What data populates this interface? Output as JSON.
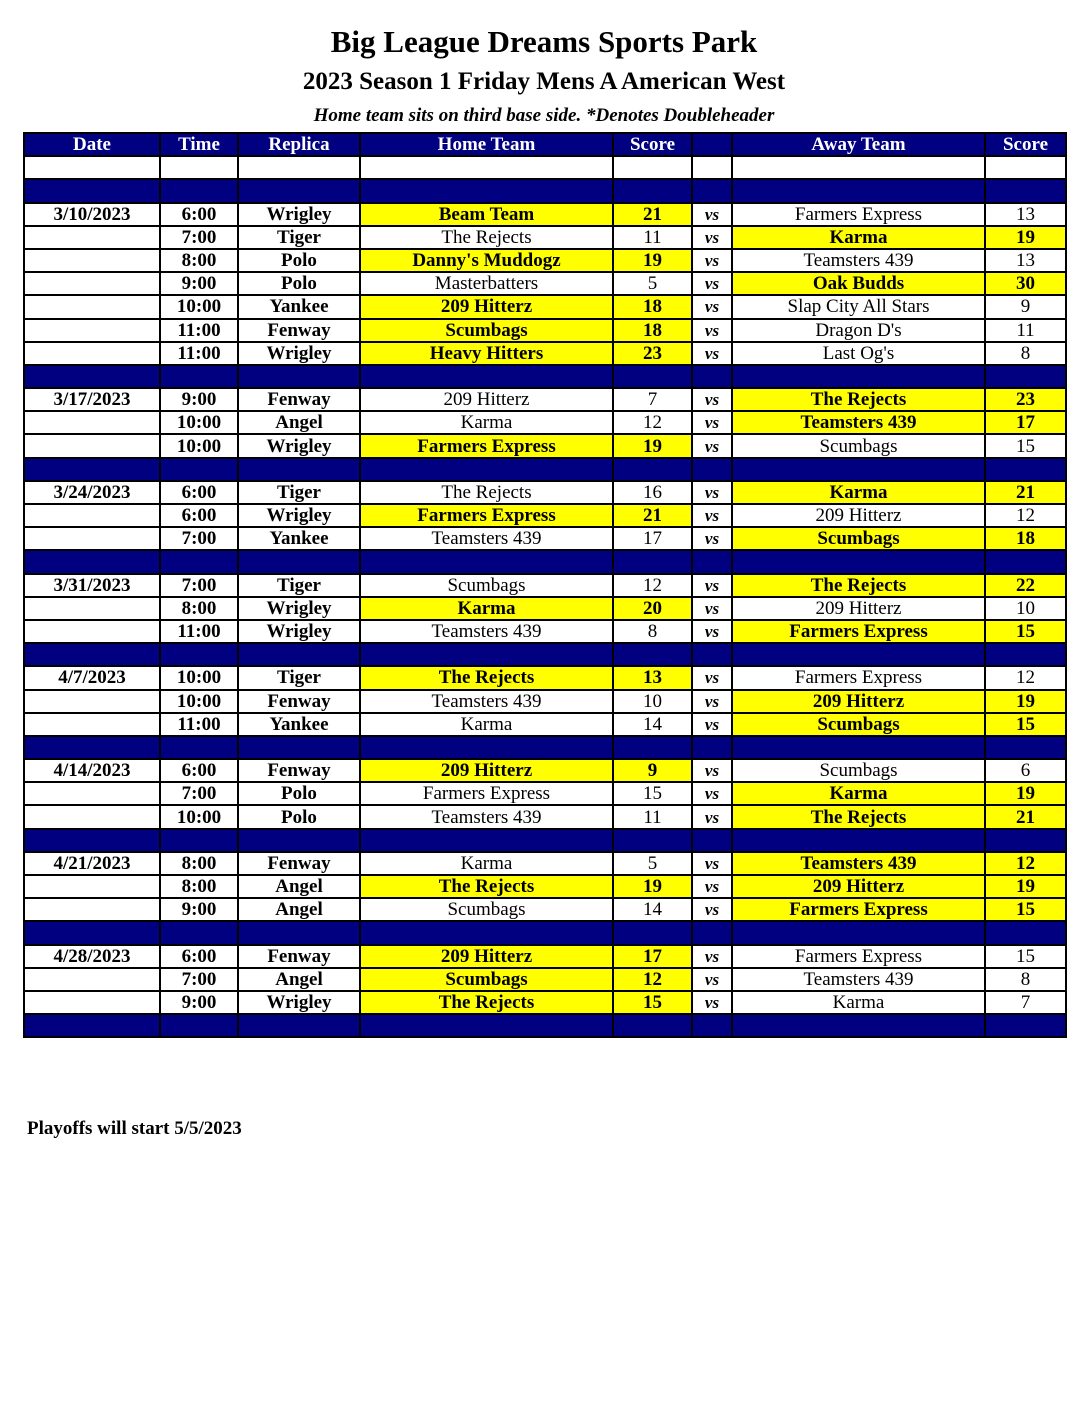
{
  "title": "Big League Dreams Sports Park",
  "subtitle": "2023 Season 1 Friday Mens A American West",
  "note": "Home team sits on third base side.  *Denotes Doubleheader",
  "headers": [
    "Date",
    "Time",
    "Replica",
    "Home Team",
    "Score",
    "",
    "Away Team",
    "Score"
  ],
  "vs_label": "vs",
  "highlight_color": "#ffff00",
  "header_color": "#000080",
  "groups": [
    {
      "date": "3/10/2023",
      "games": [
        [
          "6:00",
          "Wrigley",
          "Beam Team",
          "21",
          "Farmers Express",
          "13"
        ],
        [
          "7:00",
          "Tiger",
          "The Rejects",
          "11",
          "Karma",
          "19"
        ],
        [
          "8:00",
          "Polo",
          "Danny's Muddogz",
          "19",
          "Teamsters 439",
          "13"
        ],
        [
          "9:00",
          "Polo",
          "Masterbatters",
          "5",
          "Oak Budds",
          "30"
        ],
        [
          "10:00",
          "Yankee",
          "209 Hitterz",
          "18",
          "Slap City All Stars",
          "9"
        ],
        [
          "11:00",
          "Fenway",
          "Scumbags",
          "18",
          "Dragon D's",
          "11"
        ],
        [
          "11:00",
          "Wrigley",
          "Heavy Hitters",
          "23",
          "Last Og's",
          "8"
        ]
      ]
    },
    {
      "date": "3/17/2023",
      "games": [
        [
          "9:00",
          "Fenway",
          "209 Hitterz",
          "7",
          "The Rejects",
          "23"
        ],
        [
          "10:00",
          "Angel",
          "Karma",
          "12",
          "Teamsters 439",
          "17"
        ],
        [
          "10:00",
          "Wrigley",
          "Farmers Express",
          "19",
          "Scumbags",
          "15"
        ]
      ]
    },
    {
      "date": "3/24/2023",
      "games": [
        [
          "6:00",
          "Tiger",
          "The Rejects",
          "16",
          "Karma",
          "21"
        ],
        [
          "6:00",
          "Wrigley",
          "Farmers Express",
          "21",
          "209 Hitterz",
          "12"
        ],
        [
          "7:00",
          "Yankee",
          "Teamsters 439",
          "17",
          "Scumbags",
          "18"
        ]
      ]
    },
    {
      "date": "3/31/2023",
      "games": [
        [
          "7:00",
          "Tiger",
          "Scumbags",
          "12",
          "The Rejects",
          "22"
        ],
        [
          "8:00",
          "Wrigley",
          "Karma",
          "20",
          "209 Hitterz",
          "10"
        ],
        [
          "11:00",
          "Wrigley",
          "Teamsters 439",
          "8",
          "Farmers Express",
          "15"
        ]
      ]
    },
    {
      "date": "4/7/2023",
      "games": [
        [
          "10:00",
          "Tiger",
          "The Rejects",
          "13",
          "Farmers Express",
          "12"
        ],
        [
          "10:00",
          "Fenway",
          "Teamsters 439",
          "10",
          "209 Hitterz",
          "19"
        ],
        [
          "11:00",
          "Yankee",
          "Karma",
          "14",
          "Scumbags",
          "15"
        ]
      ]
    },
    {
      "date": "4/14/2023",
      "games": [
        [
          "6:00",
          "Fenway",
          "209 Hitterz",
          "9",
          "Scumbags",
          "6"
        ],
        [
          "7:00",
          "Polo",
          "Farmers Express",
          "15",
          "Karma",
          "19"
        ],
        [
          "10:00",
          "Polo",
          "Teamsters 439",
          "11",
          "The Rejects",
          "21"
        ]
      ]
    },
    {
      "date": "4/21/2023",
      "games": [
        [
          "8:00",
          "Fenway",
          "Karma",
          "5",
          "Teamsters 439",
          "12"
        ],
        [
          "8:00",
          "Angel",
          "The Rejects",
          "19",
          "209 Hitterz",
          "19"
        ],
        [
          "9:00",
          "Angel",
          "Scumbags",
          "14",
          "Farmers Express",
          "15"
        ]
      ]
    },
    {
      "date": "4/28/2023",
      "games": [
        [
          "6:00",
          "Fenway",
          "209 Hitterz",
          "17",
          "Farmers Express",
          "15"
        ],
        [
          "7:00",
          "Angel",
          "Scumbags",
          "12",
          "Teamsters 439",
          "8"
        ],
        [
          "9:00",
          "Wrigley",
          "The Rejects",
          "15",
          "Karma",
          "7"
        ]
      ]
    }
  ],
  "highlights": {
    "4/21/2023-1": "both"
  },
  "footer": "Playoffs will start 5/5/2023"
}
